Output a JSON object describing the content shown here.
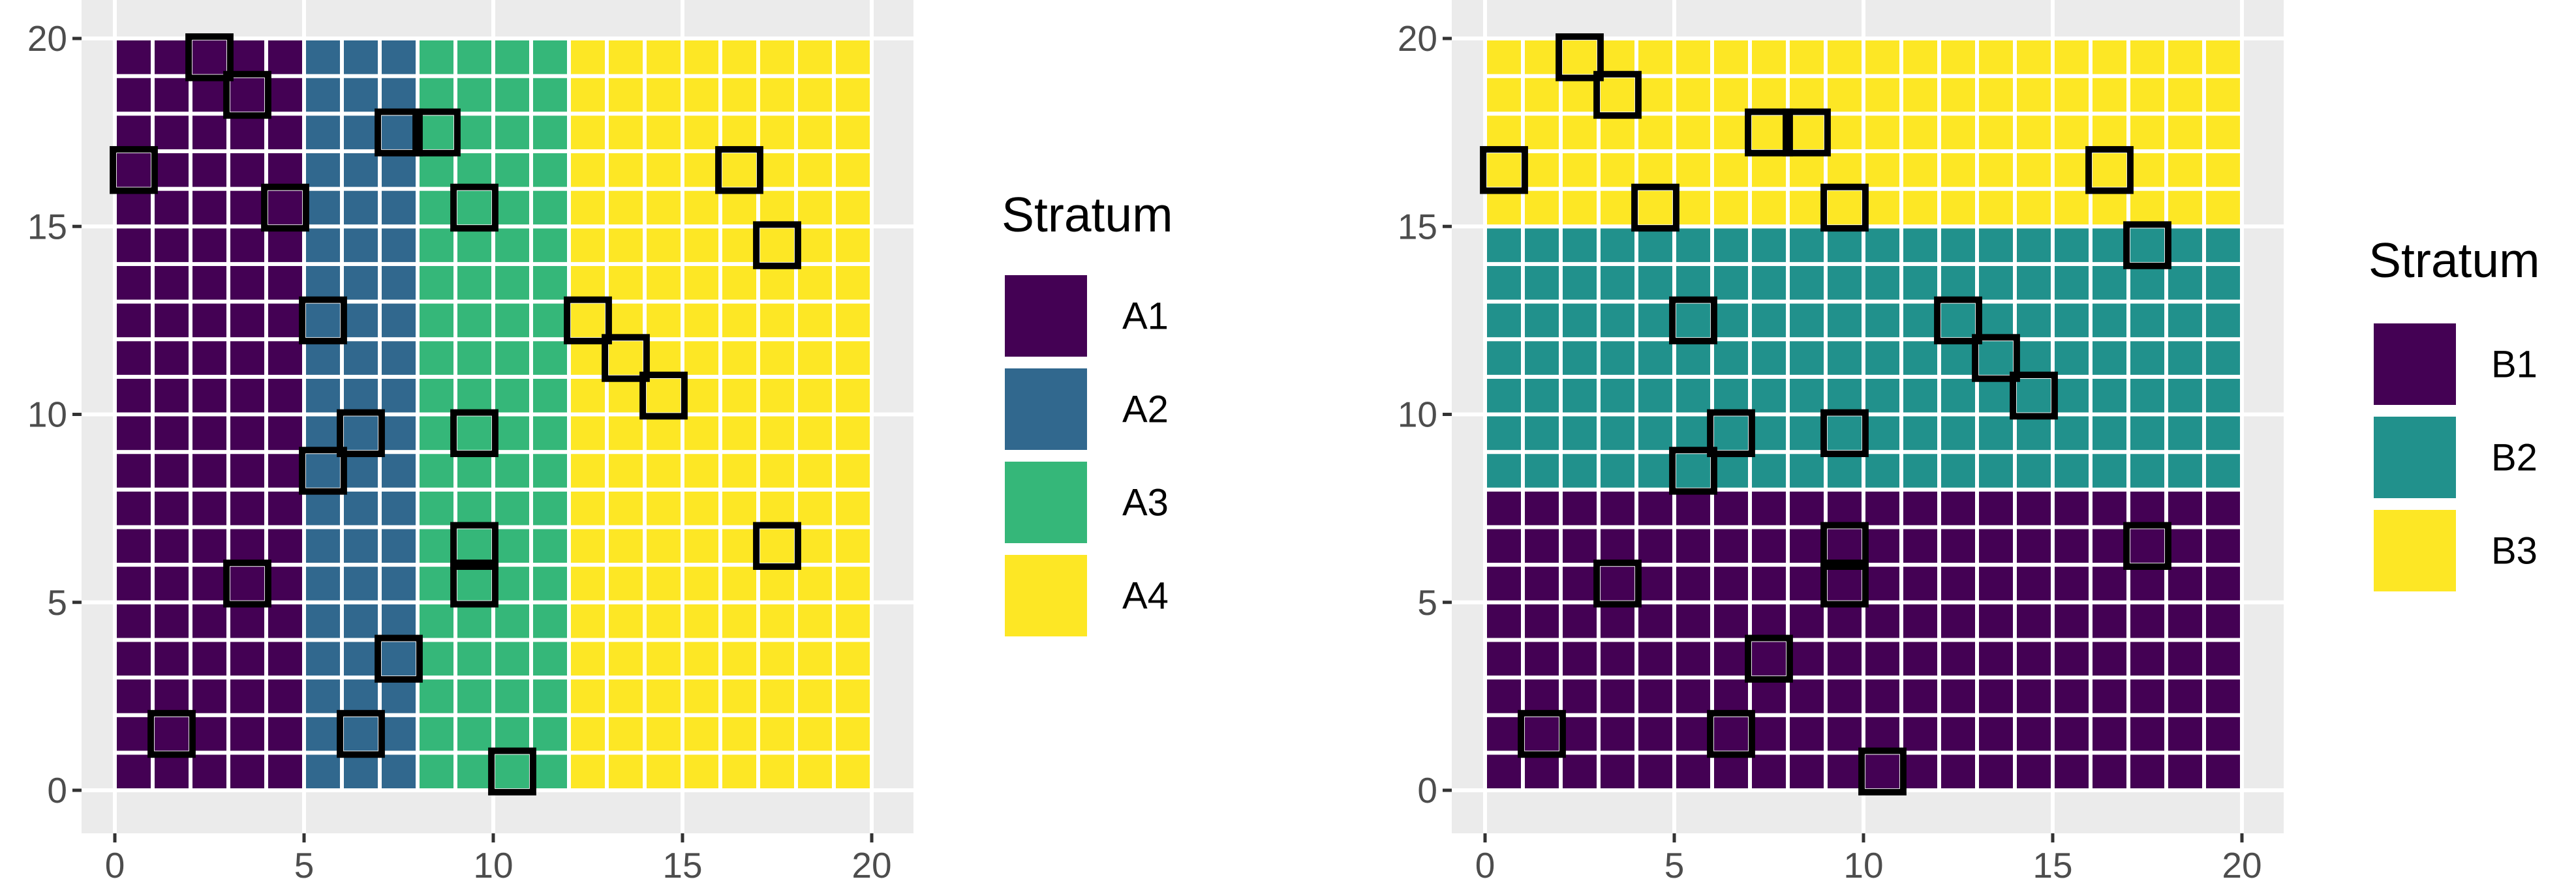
{
  "chart_data": [
    {
      "type": "heatmap",
      "x_range": [
        0,
        20
      ],
      "y_range": [
        0,
        20
      ],
      "x_ticks": [
        "0",
        "5",
        "10",
        "15",
        "20"
      ],
      "y_ticks": [
        "0",
        "5",
        "10",
        "15",
        "20"
      ],
      "grid": true,
      "legend_position": "right",
      "legend_title": "Stratum",
      "strata_axis": "x",
      "strata": [
        {
          "name": "A1",
          "range": [
            0,
            5
          ],
          "color": "#440154"
        },
        {
          "name": "A2",
          "range": [
            5,
            8
          ],
          "color": "#31688e"
        },
        {
          "name": "A3",
          "range": [
            8,
            12
          ],
          "color": "#35b779"
        },
        {
          "name": "A4",
          "range": [
            12,
            20
          ],
          "color": "#fde725"
        }
      ],
      "sampled_cells": [
        [
          2.5,
          19.5
        ],
        [
          3.5,
          18.5
        ],
        [
          7.5,
          17.5
        ],
        [
          8.5,
          17.5
        ],
        [
          0.5,
          16.5
        ],
        [
          16.5,
          16.5
        ],
        [
          4.5,
          15.5
        ],
        [
          9.5,
          15.5
        ],
        [
          17.5,
          14.5
        ],
        [
          5.5,
          12.5
        ],
        [
          12.5,
          12.5
        ],
        [
          13.5,
          11.5
        ],
        [
          14.5,
          10.5
        ],
        [
          6.5,
          9.5
        ],
        [
          9.5,
          9.5
        ],
        [
          5.5,
          8.5
        ],
        [
          9.5,
          6.5
        ],
        [
          17.5,
          6.5
        ],
        [
          3.5,
          5.5
        ],
        [
          9.5,
          5.5
        ],
        [
          7.5,
          3.5
        ],
        [
          1.5,
          1.5
        ],
        [
          6.5,
          1.5
        ],
        [
          10.5,
          0.5
        ]
      ]
    },
    {
      "type": "heatmap",
      "x_range": [
        0,
        20
      ],
      "y_range": [
        0,
        20
      ],
      "x_ticks": [
        "0",
        "5",
        "10",
        "15",
        "20"
      ],
      "y_ticks": [
        "0",
        "5",
        "10",
        "15",
        "20"
      ],
      "grid": true,
      "legend_position": "right",
      "legend_title": "Stratum",
      "strata_axis": "y",
      "strata": [
        {
          "name": "B1",
          "range": [
            0,
            8
          ],
          "color": "#440154"
        },
        {
          "name": "B2",
          "range": [
            8,
            15
          ],
          "color": "#21918c"
        },
        {
          "name": "B3",
          "range": [
            15,
            20
          ],
          "color": "#fde725"
        }
      ],
      "sampled_cells": [
        [
          2.5,
          19.5
        ],
        [
          3.5,
          18.5
        ],
        [
          7.5,
          17.5
        ],
        [
          8.5,
          17.5
        ],
        [
          0.5,
          16.5
        ],
        [
          16.5,
          16.5
        ],
        [
          4.5,
          15.5
        ],
        [
          9.5,
          15.5
        ],
        [
          17.5,
          14.5
        ],
        [
          5.5,
          12.5
        ],
        [
          12.5,
          12.5
        ],
        [
          13.5,
          11.5
        ],
        [
          14.5,
          10.5
        ],
        [
          6.5,
          9.5
        ],
        [
          9.5,
          9.5
        ],
        [
          5.5,
          8.5
        ],
        [
          9.5,
          6.5
        ],
        [
          17.5,
          6.5
        ],
        [
          3.5,
          5.5
        ],
        [
          9.5,
          5.5
        ],
        [
          7.5,
          3.5
        ],
        [
          1.5,
          1.5
        ],
        [
          6.5,
          1.5
        ],
        [
          10.5,
          0.5
        ]
      ]
    }
  ]
}
